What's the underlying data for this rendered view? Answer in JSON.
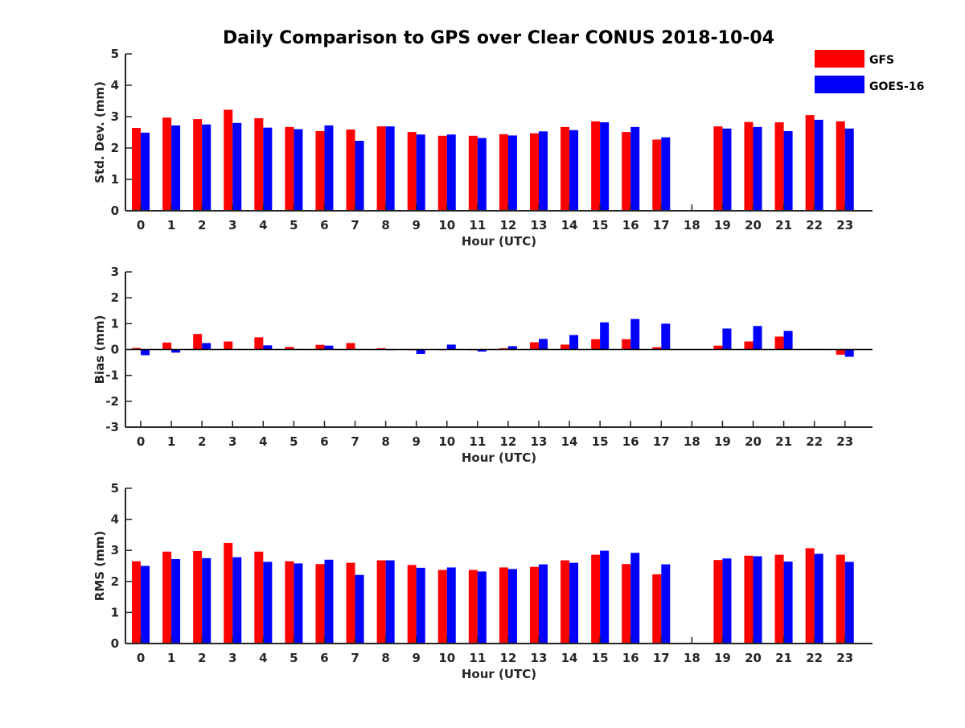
{
  "title": "Daily Comparison to GPS over Clear CONUS 2018-10-04",
  "legend": [
    {
      "name": "GFS",
      "color": "#ff0000"
    },
    {
      "name": "GOES-16",
      "color": "#0000ff"
    }
  ],
  "chart_data": [
    {
      "type": "bar",
      "id": "stddev",
      "ylabel": "Std. Dev. (mm)",
      "xlabel": "Hour (UTC)",
      "ylim": [
        0,
        5
      ],
      "yticks": [
        "0",
        "1",
        "2",
        "3",
        "4",
        "5"
      ],
      "categories": [
        "0",
        "1",
        "2",
        "3",
        "4",
        "5",
        "6",
        "7",
        "8",
        "9",
        "10",
        "11",
        "12",
        "13",
        "14",
        "15",
        "16",
        "17",
        "18",
        "19",
        "20",
        "21",
        "22",
        "23"
      ],
      "series": [
        {
          "name": "GFS",
          "values": [
            2.64,
            2.97,
            2.92,
            3.22,
            2.95,
            2.67,
            2.54,
            2.59,
            2.69,
            2.51,
            2.39,
            2.39,
            2.44,
            2.47,
            2.67,
            2.85,
            2.51,
            2.27,
            null,
            2.69,
            2.83,
            2.82,
            3.05,
            2.85
          ]
        },
        {
          "name": "GOES-16",
          "values": [
            2.49,
            2.72,
            2.75,
            2.8,
            2.65,
            2.6,
            2.72,
            2.23,
            2.69,
            2.43,
            2.43,
            2.32,
            2.4,
            2.53,
            2.57,
            2.82,
            2.67,
            2.34,
            null,
            2.62,
            2.67,
            2.54,
            2.9,
            2.62
          ]
        }
      ]
    },
    {
      "type": "bar",
      "id": "bias",
      "ylabel": "Bias (mm)",
      "xlabel": "Hour (UTC)",
      "ylim": [
        -3,
        3
      ],
      "yticks": [
        "-3",
        "-2",
        "-1",
        "0",
        "1",
        "2",
        "3"
      ],
      "categories": [
        "0",
        "1",
        "2",
        "3",
        "4",
        "5",
        "6",
        "7",
        "8",
        "9",
        "10",
        "11",
        "12",
        "13",
        "14",
        "15",
        "16",
        "17",
        "18",
        "19",
        "20",
        "21",
        "22",
        "23"
      ],
      "series": [
        {
          "name": "GFS",
          "values": [
            0.06,
            0.27,
            0.6,
            0.31,
            0.47,
            0.1,
            0.18,
            0.25,
            0.05,
            0.0,
            0.0,
            -0.03,
            0.05,
            0.28,
            0.19,
            0.4,
            0.4,
            0.09,
            null,
            0.15,
            0.31,
            0.5,
            0.02,
            -0.2
          ]
        },
        {
          "name": "GOES-16",
          "values": [
            -0.22,
            -0.12,
            0.25,
            0.02,
            0.16,
            0.02,
            0.15,
            0.02,
            0.0,
            -0.17,
            0.19,
            -0.08,
            0.13,
            0.41,
            0.56,
            1.05,
            1.18,
            1.0,
            null,
            0.81,
            0.91,
            0.72,
            0.02,
            -0.28
          ]
        }
      ]
    },
    {
      "type": "bar",
      "id": "rms",
      "ylabel": "RMS (mm)",
      "xlabel": "Hour (UTC)",
      "ylim": [
        0,
        5
      ],
      "yticks": [
        "0",
        "1",
        "2",
        "3",
        "4",
        "5"
      ],
      "categories": [
        "0",
        "1",
        "2",
        "3",
        "4",
        "5",
        "6",
        "7",
        "8",
        "9",
        "10",
        "11",
        "12",
        "13",
        "14",
        "15",
        "16",
        "17",
        "18",
        "19",
        "20",
        "21",
        "22",
        "23"
      ],
      "series": [
        {
          "name": "GFS",
          "values": [
            2.65,
            2.96,
            2.98,
            3.24,
            2.96,
            2.65,
            2.56,
            2.6,
            2.68,
            2.53,
            2.37,
            2.37,
            2.45,
            2.47,
            2.68,
            2.86,
            2.56,
            2.23,
            null,
            2.69,
            2.83,
            2.86,
            3.07,
            2.86
          ]
        },
        {
          "name": "GOES-16",
          "values": [
            2.5,
            2.72,
            2.75,
            2.78,
            2.63,
            2.58,
            2.7,
            2.21,
            2.68,
            2.44,
            2.45,
            2.32,
            2.4,
            2.55,
            2.6,
            2.99,
            2.92,
            2.55,
            null,
            2.74,
            2.81,
            2.64,
            2.89,
            2.63
          ]
        }
      ]
    }
  ]
}
